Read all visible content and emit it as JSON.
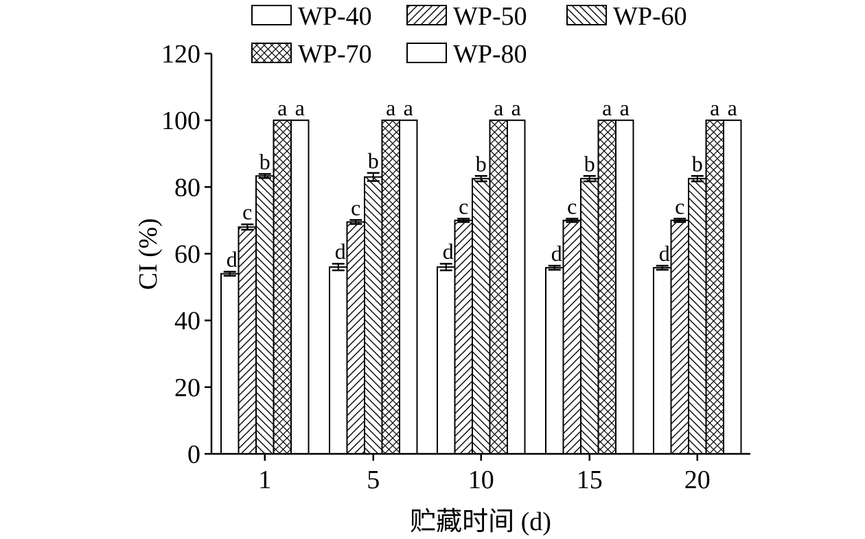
{
  "chart_data": {
    "type": "bar",
    "title": "",
    "xlabel": "贮藏时间 (d)",
    "ylabel": "CI (%)",
    "ylim": [
      0,
      120
    ],
    "yticks": [
      0,
      20,
      40,
      60,
      80,
      100,
      120
    ],
    "categories": [
      "1",
      "5",
      "10",
      "15",
      "20"
    ],
    "legend_position": "top",
    "series": [
      {
        "name": "WP-40",
        "pattern": "none",
        "values": [
          54.0,
          56.0,
          56.0,
          55.8,
          55.8
        ],
        "errors": [
          0.6,
          1.0,
          1.0,
          0.6,
          0.6
        ],
        "sig": [
          "d",
          "d",
          "d",
          "d",
          "d"
        ]
      },
      {
        "name": "WP-50",
        "pattern": "diag-forward",
        "values": [
          68.0,
          69.5,
          70.0,
          70.0,
          70.0
        ],
        "errors": [
          0.8,
          0.6,
          0.5,
          0.5,
          0.5
        ],
        "sig": [
          "c",
          "c",
          "c",
          "c",
          "c"
        ]
      },
      {
        "name": "WP-60",
        "pattern": "diag-backward",
        "values": [
          83.3,
          83.0,
          82.5,
          82.5,
          82.5
        ],
        "errors": [
          0.6,
          1.2,
          0.8,
          0.8,
          0.8
        ],
        "sig": [
          "b",
          "b",
          "b",
          "b",
          "b"
        ]
      },
      {
        "name": "WP-70",
        "pattern": "crosshatch",
        "values": [
          100,
          100,
          100,
          100,
          100
        ],
        "errors": [
          0,
          0,
          0,
          0,
          0
        ],
        "sig": [
          "a",
          "a",
          "a",
          "a",
          "a"
        ]
      },
      {
        "name": "WP-80",
        "pattern": "none",
        "values": [
          100,
          100,
          100,
          100,
          100
        ],
        "errors": [
          0,
          0,
          0,
          0,
          0
        ],
        "sig": [
          "a",
          "a",
          "a",
          "a",
          "a"
        ]
      }
    ],
    "colors": {
      "stroke": "#000000",
      "fill": "#ffffff"
    }
  }
}
